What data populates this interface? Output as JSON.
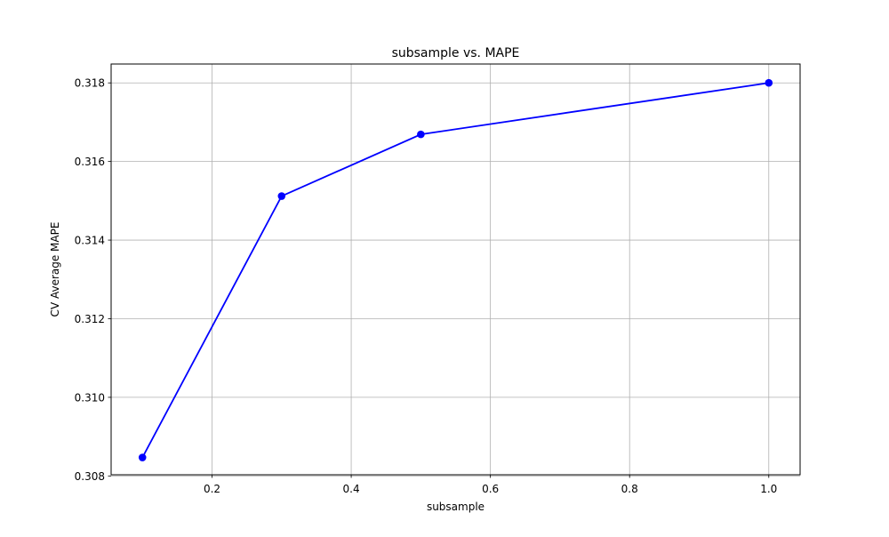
{
  "chart_data": {
    "type": "line",
    "title": "subsample vs. MAPE",
    "xlabel": "subsample",
    "ylabel": "CV Average MAPE",
    "x": [
      0.1,
      0.3,
      0.5,
      1.0
    ],
    "series": [
      {
        "values": [
          0.30847,
          0.31512,
          0.31669,
          0.318
        ]
      }
    ],
    "xlim": [
      0.055,
      1.045
    ],
    "ylim": [
      0.30803,
      0.31848
    ],
    "xticks": [
      0.2,
      0.4,
      0.6,
      0.8,
      1.0
    ],
    "xtick_labels": [
      "0.2",
      "0.4",
      "0.6",
      "0.8",
      "1.0"
    ],
    "yticks": [
      0.308,
      0.31,
      0.312,
      0.314,
      0.316,
      0.318
    ],
    "ytick_labels": [
      "0.308",
      "0.310",
      "0.312",
      "0.314",
      "0.316",
      "0.318"
    ],
    "grid": true,
    "line_color": "#0000ff",
    "marker": "circle",
    "grid_color": "#b0b0b0"
  }
}
